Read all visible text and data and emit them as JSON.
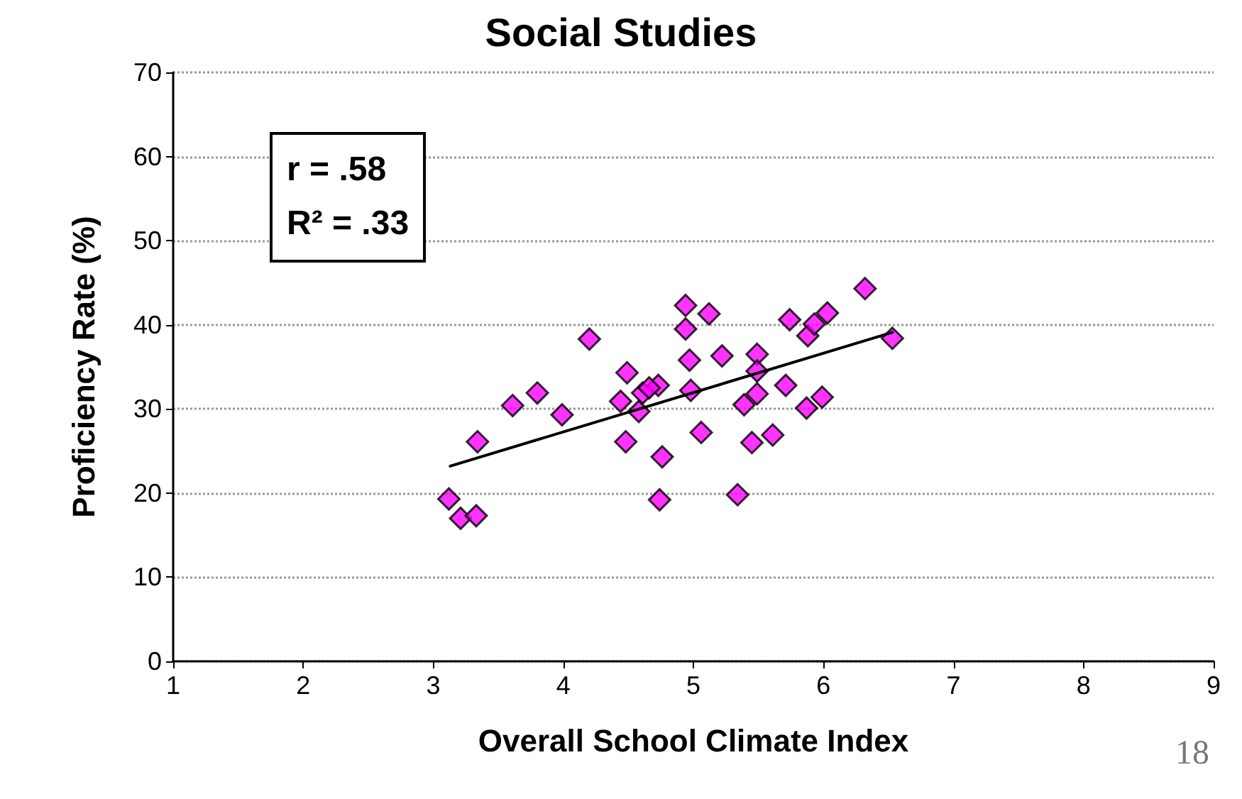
{
  "chart_data": {
    "type": "scatter",
    "title": "Social Studies",
    "xlabel": "Overall School Climate Index",
    "ylabel": "Proficiency Rate (%)",
    "annotations": [
      "r = .58",
      "R² = .33",
      "18"
    ],
    "xlim": [
      1,
      9
    ],
    "xticks": [
      1,
      2,
      3,
      4,
      5,
      6,
      7,
      8,
      9
    ],
    "ylim": [
      0,
      70
    ],
    "yticks": [
      0,
      10,
      20,
      30,
      40,
      50,
      60,
      70
    ],
    "grid": "y",
    "marker": "diamond",
    "series": [
      {
        "color": "#ff00ff",
        "x": [
          3.12,
          3.21,
          3.33,
          3.34,
          3.61,
          3.8,
          3.99,
          4.2,
          4.49,
          4.44,
          4.48,
          4.74,
          4.76,
          4.73,
          4.58,
          4.61,
          4.66,
          4.94,
          5.12,
          4.94,
          4.97,
          4.98,
          5.22,
          5.06,
          5.49,
          5.49,
          5.49,
          5.39,
          5.45,
          5.61,
          5.34,
          5.71,
          5.74,
          5.88,
          6.03,
          5.93,
          5.87,
          5.99,
          6.32,
          6.53
        ],
        "values": [
          19.3,
          17.0,
          17.3,
          26.1,
          30.4,
          31.9,
          29.3,
          38.3,
          34.3,
          30.9,
          26.1,
          19.2,
          24.3,
          32.8,
          29.7,
          31.9,
          32.5,
          42.3,
          41.3,
          39.5,
          35.8,
          32.2,
          36.3,
          27.2,
          36.5,
          34.5,
          31.8,
          30.5,
          26.0,
          26.9,
          19.8,
          32.8,
          40.6,
          38.7,
          41.4,
          40.1,
          30.1,
          31.4,
          44.3,
          38.4
        ]
      },
      {
        "type": "line",
        "color": "#000000",
        "marker": "none",
        "line_style": "solid",
        "x": [
          3.13,
          6.53
        ],
        "values": [
          23.2,
          39.1
        ]
      }
    ]
  }
}
